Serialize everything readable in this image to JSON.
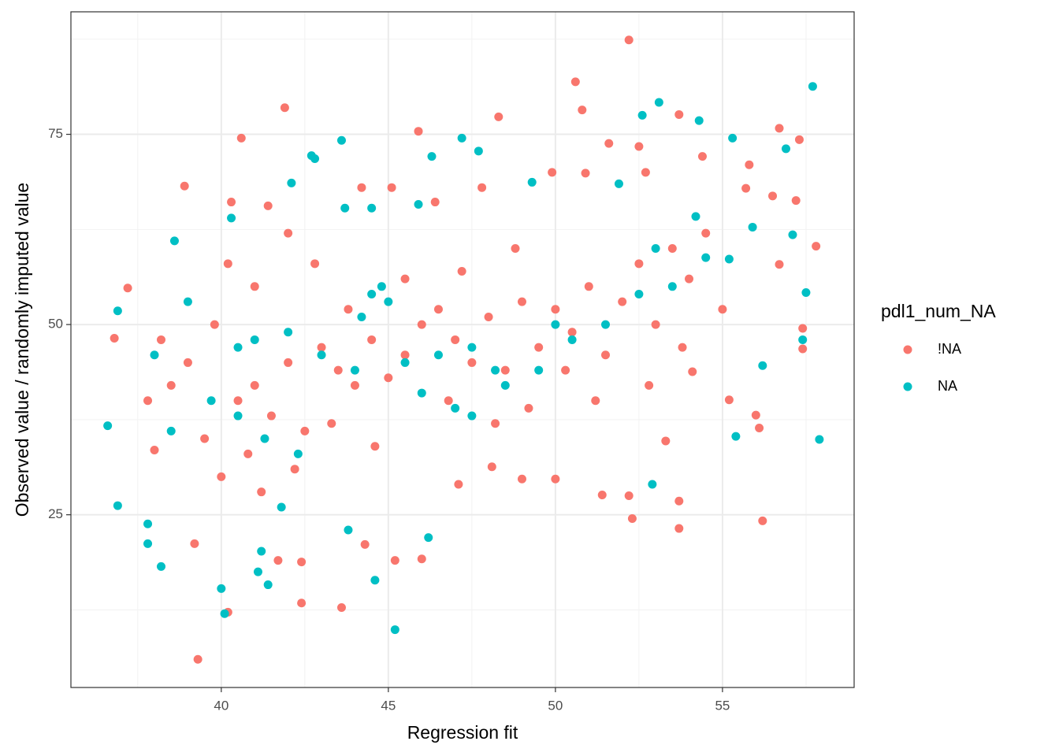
{
  "chart_data": {
    "type": "scatter",
    "x_label": "Regression fit",
    "y_label": "Observed value / randomly imputed value",
    "legend_title": "pdl1_num_NA",
    "legend_position": "right",
    "grid": true,
    "xlim": [
      35.5,
      58.94
    ],
    "ylim": [
      2.3,
      91.1
    ],
    "xticks": [
      40,
      45,
      50,
      55
    ],
    "yticks": [
      25,
      50,
      75
    ],
    "xminor": [
      37.5,
      42.5,
      47.5,
      52.5,
      57.5
    ],
    "yminor": [
      12.5,
      37.5,
      62.5,
      87.5
    ],
    "series": [
      {
        "name": "!NA",
        "color": "#F8766D",
        "x": [
          52.2,
          50.6,
          50.8,
          41.9,
          40.6,
          48.3,
          45.9,
          55.8,
          56.7,
          57.3,
          53.7,
          51.6,
          52.5,
          36.8,
          37.2,
          38.9,
          39.3,
          40.2,
          42.4,
          43.6,
          56.2,
          52.3,
          53.7,
          53.7,
          57.8,
          57.4,
          37.8,
          38,
          39.2,
          40.3,
          41.4,
          44.2,
          45.1,
          46.4,
          47.8,
          49.9,
          50.9,
          52.7,
          54.4,
          55.7,
          56.5,
          57.2,
          41.7,
          42.4,
          44.3,
          45.2,
          46,
          47.1,
          48.1,
          49,
          50,
          51.4,
          52.2,
          53.3,
          54.1,
          55.2,
          56.1,
          56,
          57.4,
          56.7,
          40.5,
          41,
          41.5,
          42,
          42.5,
          43,
          43.5,
          44,
          44.5,
          45,
          45.5,
          46,
          46.5,
          47,
          47.5,
          48,
          48.5,
          49,
          49.5,
          50,
          50.5,
          51,
          51.5,
          52,
          52.5,
          53,
          53.5,
          54,
          54.5,
          55,
          39.5,
          40,
          40.8,
          41.2,
          42.2,
          43.3,
          44.6,
          39,
          39.8,
          41,
          42.8,
          43.8,
          45.5,
          47.2,
          48.8,
          50.3,
          51.2,
          52.8,
          53.8,
          49.2,
          48.2,
          46.8,
          38.5,
          38.2,
          40.2,
          42
        ],
        "values": [
          87.4,
          81.9,
          78.2,
          78.5,
          74.5,
          77.3,
          75.4,
          71,
          75.8,
          74.3,
          77.6,
          73.8,
          73.4,
          48.2,
          54.8,
          68.2,
          6,
          12.2,
          13.4,
          12.8,
          24.2,
          24.5,
          23.2,
          26.8,
          60.3,
          46.8,
          40,
          33.5,
          21.2,
          66.1,
          65.6,
          68,
          68,
          66.1,
          68,
          70,
          69.9,
          70,
          72.1,
          67.9,
          66.9,
          66.3,
          19,
          18.8,
          21.1,
          19,
          19.2,
          29,
          31.3,
          29.7,
          29.7,
          27.6,
          27.5,
          34.7,
          43.8,
          40.1,
          36.4,
          38.1,
          49.5,
          57.9,
          40,
          42,
          38,
          45,
          36,
          47,
          44,
          42,
          48,
          43,
          46,
          50,
          52,
          48,
          45,
          51,
          44,
          53,
          47,
          52,
          49,
          55,
          46,
          53,
          58,
          50,
          60,
          56,
          62,
          52,
          35,
          30,
          33,
          28,
          31,
          37,
          34,
          45,
          50,
          55,
          58,
          52,
          56,
          57,
          60,
          44,
          40,
          42,
          47,
          39,
          37,
          40,
          42,
          48,
          58,
          62
        ]
      },
      {
        "name": "NA",
        "color": "#00BFC4",
        "x": [
          57.7,
          53.1,
          52.6,
          54.3,
          55.3,
          56.9,
          47.2,
          43.6,
          42.7,
          42.8,
          46.3,
          47.7,
          42.1,
          36.6,
          36.9,
          36.9,
          37.8,
          37.8,
          38.2,
          40,
          40.1,
          41.4,
          41.1,
          41.2,
          45.2,
          44.6,
          57.9,
          55.4,
          52.9,
          56.2,
          57.4,
          57.5,
          57.1,
          55.9,
          38.6,
          40.3,
          43.7,
          44.5,
          45.9,
          49.3,
          51.9,
          54.2,
          55.2,
          44.8,
          44.5,
          45,
          44.2,
          41,
          40.5,
          42,
          43,
          44,
          45.5,
          46.5,
          47.5,
          48.5,
          49.5,
          50.5,
          51.5,
          52.5,
          53.5,
          40.5,
          41.3,
          42.3,
          39.7,
          46,
          47,
          48.2,
          50,
          53,
          54.5,
          39,
          38,
          38.5,
          41.8,
          43.8,
          46.2,
          47.5
        ],
        "values": [
          81.3,
          79.2,
          77.5,
          76.8,
          74.5,
          73.1,
          74.5,
          74.2,
          72.2,
          71.8,
          72.1,
          72.8,
          68.6,
          36.7,
          26.2,
          51.8,
          23.8,
          21.2,
          18.2,
          15.3,
          12,
          15.8,
          17.5,
          20.2,
          9.9,
          16.4,
          34.9,
          35.3,
          29,
          44.6,
          48,
          54.2,
          61.8,
          62.8,
          61,
          64,
          65.3,
          65.3,
          65.8,
          68.7,
          68.5,
          64.2,
          58.6,
          55,
          54,
          53,
          51,
          48,
          47,
          49,
          46,
          44,
          45,
          46,
          47,
          42,
          44,
          48,
          50,
          54,
          55,
          38,
          35,
          33,
          40,
          41,
          39,
          44,
          50,
          60,
          58.8,
          53,
          46,
          36,
          26,
          23,
          22,
          38
        ]
      }
    ]
  }
}
